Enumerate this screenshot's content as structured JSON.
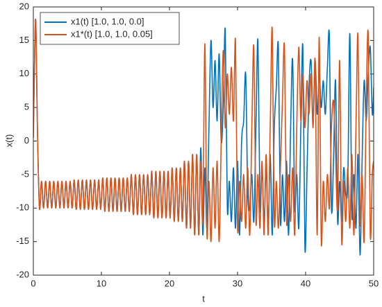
{
  "chart_data": {
    "type": "line",
    "xlabel": "t",
    "ylabel": "x(t)",
    "x": [
      0,
      0.15,
      0.35,
      0.6,
      0.9,
      1.2,
      1.5,
      1.8,
      2.1,
      2.4,
      2.7,
      3,
      3.3,
      3.6,
      3.9,
      4.2,
      4.5,
      4.8,
      5.1,
      5.4,
      5.7,
      6,
      6.3,
      6.6,
      6.9,
      7.2,
      7.5,
      7.8,
      8.1,
      8.4,
      8.7,
      9,
      9.3,
      9.6,
      9.9,
      10.2,
      10.5,
      10.8,
      11.1,
      11.4,
      11.7,
      12,
      12.3,
      12.6,
      12.9,
      13.2,
      13.5,
      13.8,
      14.1,
      14.4,
      14.7,
      15,
      15.3,
      15.6,
      15.9,
      16.2,
      16.5,
      16.8,
      17.1,
      17.4,
      17.7,
      18,
      18.3,
      18.6,
      18.9,
      19.2,
      19.5,
      19.8,
      20.1,
      20.4,
      20.7,
      21,
      21.3,
      21.6,
      21.9,
      22.2,
      22.5,
      22.8,
      23.1,
      23.4,
      23.7,
      24,
      24.3,
      24.6,
      24.9,
      25.2,
      25.5,
      25.8,
      26.1,
      26.4,
      26.7,
      27,
      27.3,
      27.6,
      27.9,
      28.2,
      28.5,
      28.8,
      29.1,
      29.4,
      29.7,
      30,
      30.3,
      30.6,
      30.9,
      31.2,
      31.5,
      31.8,
      32.1,
      32.4,
      32.7,
      33,
      33.3,
      33.6,
      33.9,
      34.2,
      34.5,
      34.8,
      35.1,
      35.4,
      35.7,
      36,
      36.3,
      36.6,
      36.9,
      37.2,
      37.5,
      37.8,
      38.1,
      38.4,
      38.7,
      39,
      39.3,
      39.6,
      39.9,
      40.2,
      40.5,
      40.8,
      41.1,
      41.4,
      41.7,
      42,
      42.3,
      42.6,
      42.9,
      43.2,
      43.5,
      43.8,
      44.1,
      44.4,
      44.7,
      45,
      45.3,
      45.6,
      45.9,
      46.2,
      46.5,
      46.8,
      47.1,
      47.4,
      47.7,
      48,
      48.3,
      48.6,
      48.9,
      49.2,
      49.5,
      49.8,
      50
    ],
    "series": [
      {
        "name": "x1(t) [1.0, 1.0, 0.0]",
        "color": "#0072bd",
        "values": [
          0.5,
          10,
          18,
          2,
          -10,
          -6,
          -10,
          -6,
          -10,
          -6,
          -10,
          -6,
          -10,
          -6,
          -10,
          -6,
          -10,
          -6,
          -10,
          -6,
          -10,
          -5.8,
          -10.2,
          -5.8,
          -10.2,
          -5.8,
          -10.2,
          -5.8,
          -10.2,
          -5.8,
          -10.2,
          -5.8,
          -10.2,
          -5.8,
          -10.2,
          -5.5,
          -10.5,
          -5.5,
          -10.5,
          -5.5,
          -10.5,
          -5.5,
          -10.5,
          -5.5,
          -10.5,
          -5.5,
          -10.5,
          -5.5,
          -10.5,
          -5,
          -11,
          -5,
          -11,
          -5,
          -11,
          -5,
          -11,
          -5,
          -11,
          -4.5,
          -11.5,
          -4.5,
          -11.5,
          -4.5,
          -11.5,
          -4.5,
          -11.5,
          -4.5,
          -11.5,
          -4,
          -12,
          -4,
          -12,
          -4,
          -12,
          -3,
          -13,
          -3,
          -13,
          -2,
          -14,
          -2,
          -14,
          -1,
          -14,
          -4,
          -13,
          2,
          15,
          5,
          12,
          3,
          13,
          0,
          5,
          16.5,
          -10,
          -6,
          -12,
          -4,
          -13,
          -3,
          -14,
          0,
          3,
          10,
          -8,
          -10,
          -5,
          -12,
          2,
          15,
          -10,
          -4,
          -12,
          -4,
          -13,
          -2,
          -14,
          2,
          8,
          14,
          -12,
          -5,
          -12,
          -3,
          -14,
          2,
          12,
          -10,
          -5,
          -13,
          2,
          14,
          -16,
          -5,
          8,
          12,
          3,
          12,
          4,
          10,
          5,
          9,
          4,
          11,
          15.5,
          -10,
          -3,
          9,
          -12,
          -6,
          -12,
          -4,
          -8,
          -6,
          16,
          -11,
          -5,
          -13,
          -2,
          -17,
          -3,
          9,
          3,
          10,
          14,
          4,
          8
        ]
      },
      {
        "name": "x1*(t) [1.0, 1.0, 0.05]",
        "color": "#d95319",
        "values": [
          0.5,
          10,
          18,
          2,
          -10,
          -6,
          -10,
          -6,
          -10,
          -6,
          -10,
          -6,
          -10,
          -6,
          -10,
          -6,
          -10,
          -6,
          -10,
          -6,
          -10,
          -5.8,
          -10.2,
          -5.8,
          -10.2,
          -5.8,
          -10.2,
          -5.8,
          -10.2,
          -5.8,
          -10.2,
          -5.8,
          -10.2,
          -5.8,
          -10.2,
          -5.5,
          -10.5,
          -5.5,
          -10.5,
          -5.5,
          -10.5,
          -5.5,
          -10.5,
          -5.5,
          -10.5,
          -5.5,
          -10.5,
          -5.5,
          -10.5,
          -5,
          -11,
          -5,
          -11,
          -5,
          -11,
          -5,
          -11,
          -5,
          -11,
          -4.5,
          -11.5,
          -4.5,
          -11.5,
          -4.5,
          -11.5,
          -4.5,
          -11.5,
          -4.5,
          -11.5,
          -4,
          -12,
          -4,
          -12,
          -4,
          -12,
          -3,
          -13,
          -3,
          -13,
          -2,
          -14,
          -2,
          -14,
          -3,
          -12,
          14.5,
          -14,
          -6,
          -15,
          -4,
          -13,
          -3,
          -15,
          0,
          13.5,
          2,
          10,
          4,
          11,
          3,
          15,
          -13,
          -6,
          -12,
          -5,
          -13,
          -4,
          -14,
          2,
          14,
          -12,
          -5,
          -13,
          -3,
          -14,
          -2,
          -14,
          2,
          16.7,
          -12,
          -6,
          -13,
          -4,
          6,
          14,
          -12,
          -5,
          -12,
          -4,
          -14,
          2,
          14,
          3,
          10,
          2,
          9,
          4,
          10,
          2,
          12,
          -14,
          15.5,
          -15,
          -6,
          -12,
          -5,
          -10,
          2,
          6,
          -2,
          -10,
          12,
          -15,
          -6,
          -12,
          -4,
          -13,
          -2,
          -14,
          2,
          15.8,
          -12,
          -5,
          -15,
          5,
          15.9,
          -14,
          -5,
          -3
        ]
      }
    ],
    "xlim": [
      0,
      50
    ],
    "ylim": [
      -20,
      20
    ],
    "xticks": [
      0,
      10,
      20,
      30,
      40,
      50
    ],
    "yticks": [
      -20,
      -15,
      -10,
      -5,
      0,
      5,
      10,
      15,
      20
    ],
    "legend": "upper left"
  }
}
